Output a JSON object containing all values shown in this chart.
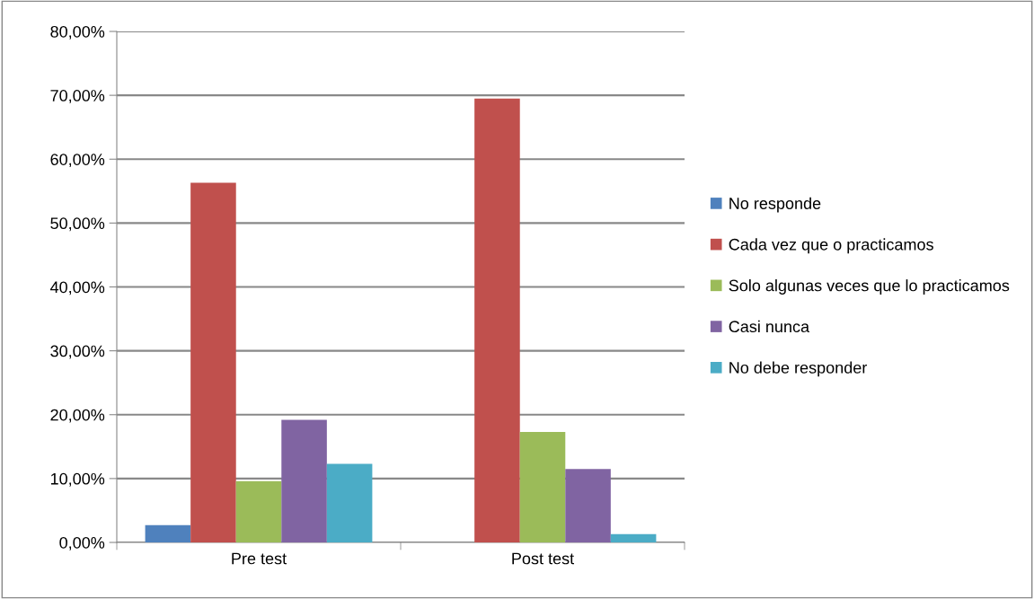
{
  "chart_data": {
    "type": "bar",
    "categories": [
      "Pre test",
      "Post test"
    ],
    "series": [
      {
        "name": "No responde",
        "color": "#4f81bd",
        "values": [
          2.7,
          0
        ]
      },
      {
        "name": "Cada vez que o practicamos",
        "color": "#c0504d",
        "values": [
          56.3,
          69.5
        ]
      },
      {
        "name": "Solo algunas veces que lo practicamos",
        "color": "#9bbb59",
        "values": [
          9.6,
          17.3
        ]
      },
      {
        "name": "Casi nunca",
        "color": "#8064a2",
        "values": [
          19.2,
          11.5
        ]
      },
      {
        "name": "No debe responder",
        "color": "#4bacc6",
        "values": [
          12.3,
          1.3
        ]
      }
    ],
    "ylim": [
      0,
      80
    ],
    "yticks": [
      {
        "value": 0,
        "label": "0,00%"
      },
      {
        "value": 10,
        "label": "10,00%"
      },
      {
        "value": 20,
        "label": "20,00%"
      },
      {
        "value": 30,
        "label": "30,00%"
      },
      {
        "value": 40,
        "label": "40,00%"
      },
      {
        "value": 50,
        "label": "50,00%"
      },
      {
        "value": 60,
        "label": "60,00%"
      },
      {
        "value": 70,
        "label": "70,00%"
      },
      {
        "value": 80,
        "label": "80,00%"
      }
    ],
    "grid": "y",
    "legend": "right"
  }
}
